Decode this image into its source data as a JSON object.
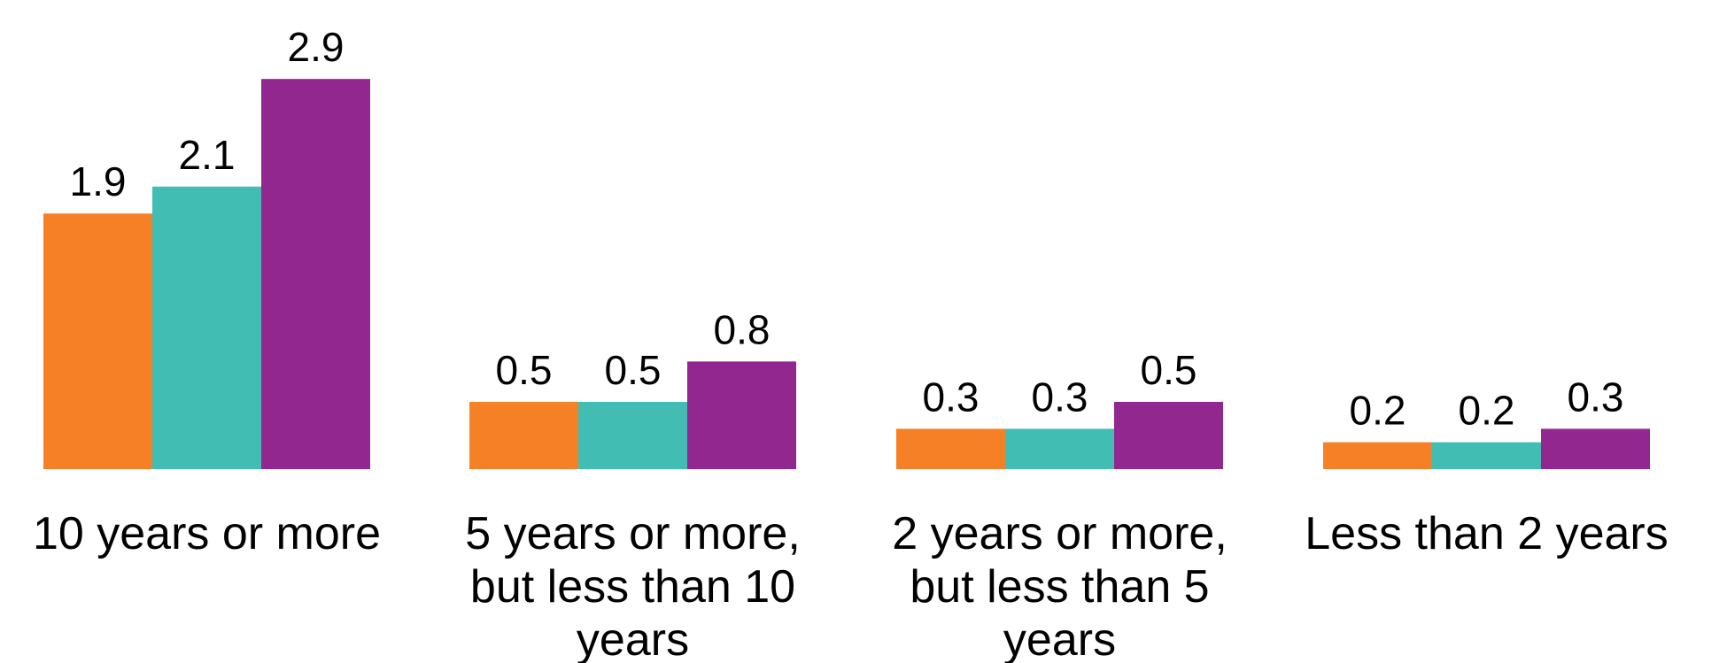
{
  "chart_data": {
    "type": "bar",
    "title": "",
    "xlabel": "",
    "ylabel": "",
    "categories": [
      [
        "10 years or more"
      ],
      [
        "5 years or more,",
        "but less than 10",
        "years"
      ],
      [
        "2 years or more,",
        "but less than 5",
        "years"
      ],
      [
        "Less than 2 years"
      ]
    ],
    "series": [
      {
        "values": [
          1.9,
          0.5,
          0.3,
          0.2
        ],
        "value_labels": [
          "1.9",
          "0.5",
          "0.3",
          "0.2"
        ],
        "color": "#F58025"
      },
      {
        "values": [
          2.1,
          0.5,
          0.3,
          0.2
        ],
        "value_labels": [
          "2.1",
          "0.5",
          "0.3",
          "0.2"
        ],
        "color": "#42BDB3"
      },
      {
        "values": [
          2.9,
          0.8,
          0.5,
          0.3
        ],
        "value_labels": [
          "2.9",
          "0.8",
          "0.5",
          "0.3"
        ],
        "color": "#92278F"
      }
    ],
    "ylim": [
      0,
      3.0
    ],
    "grid": false,
    "legend": "none"
  }
}
